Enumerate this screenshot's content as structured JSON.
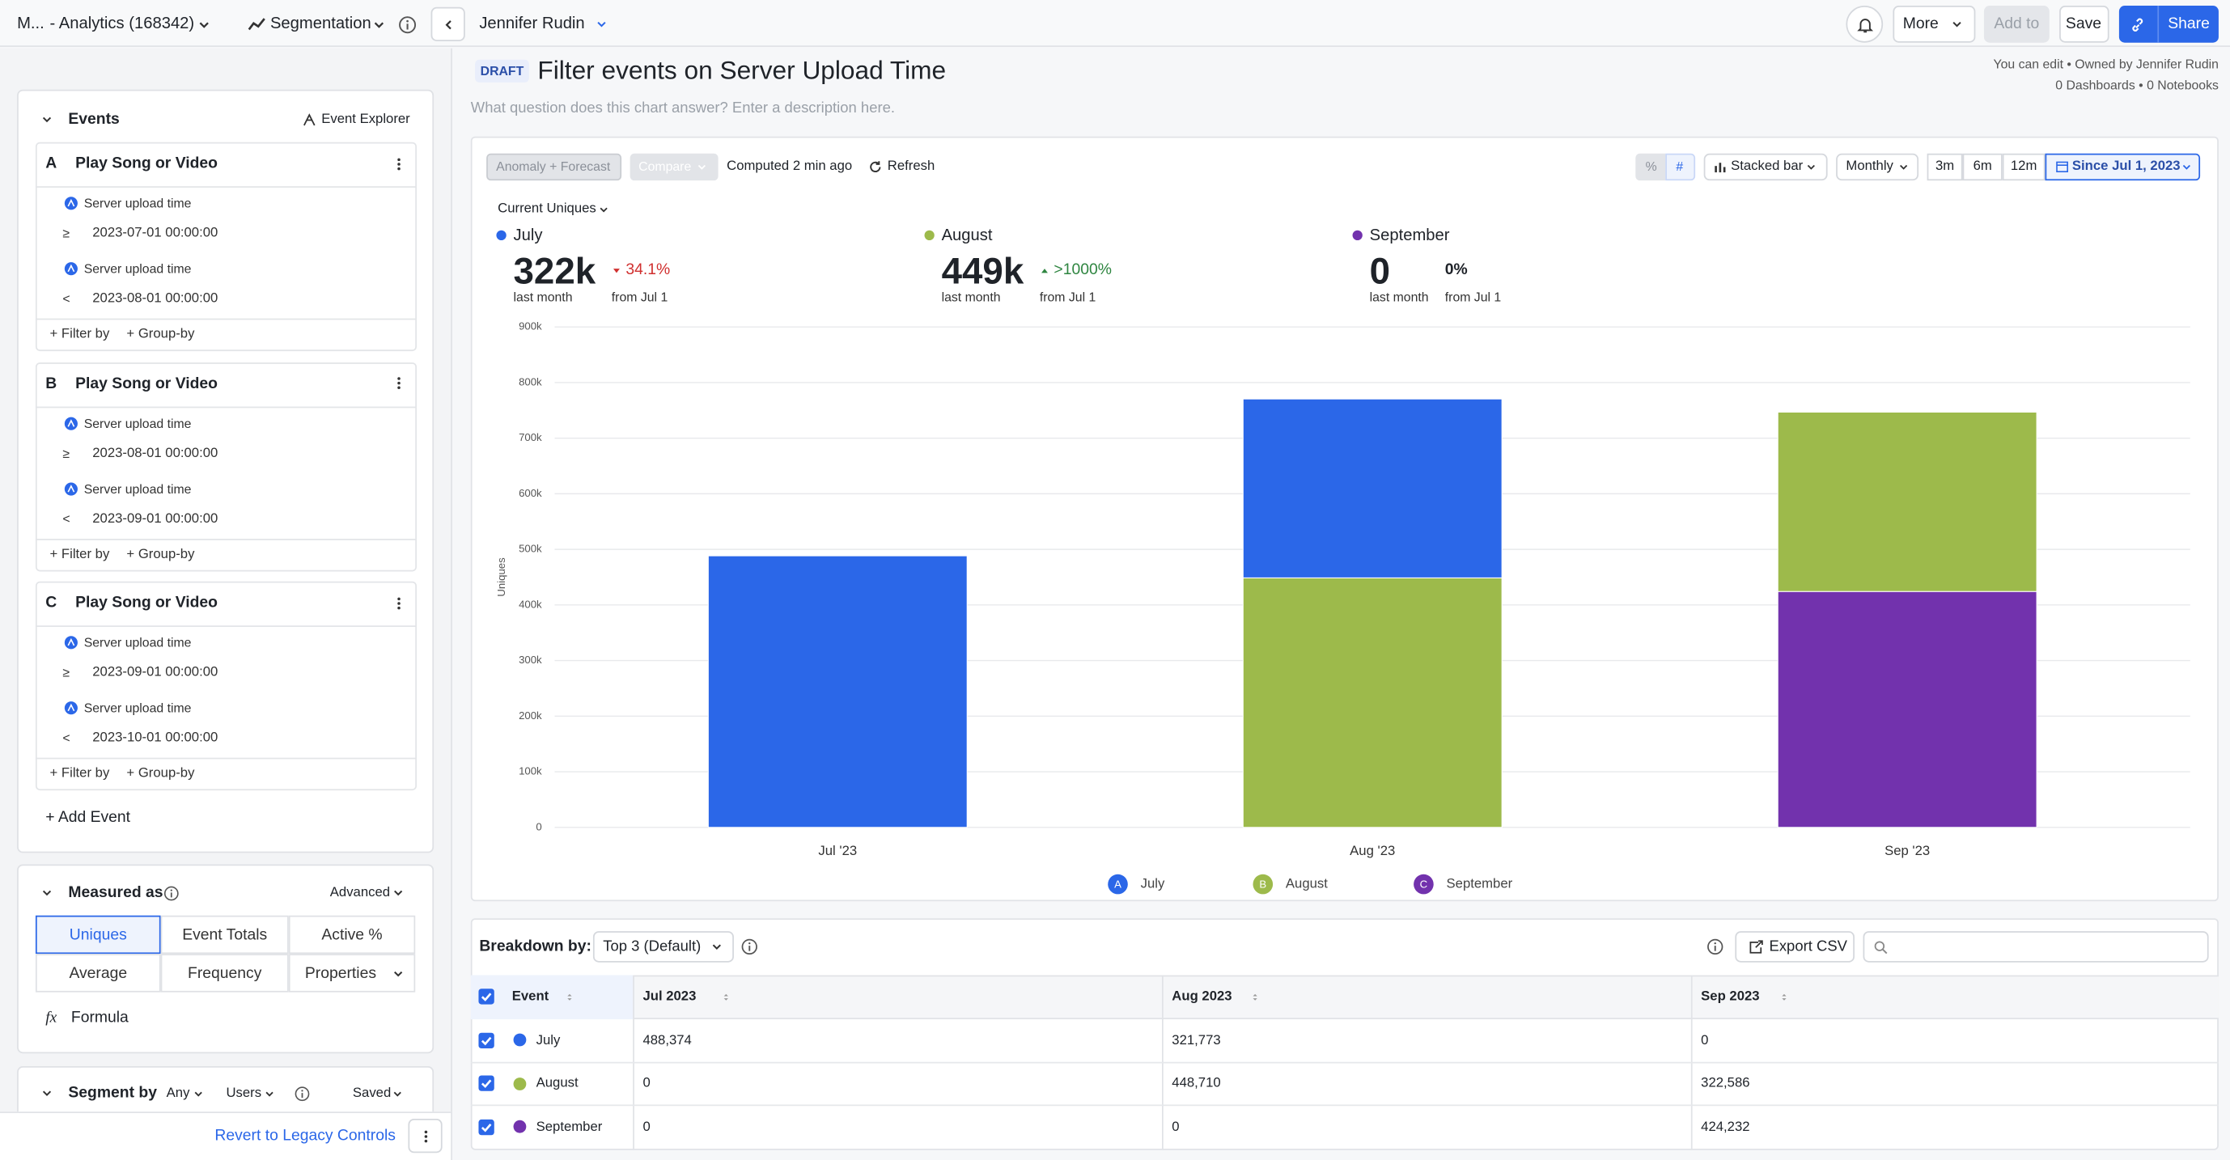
{
  "topbar": {
    "project": "M...",
    "analytics": "- Analytics (168342)",
    "chart_kind": "Segmentation",
    "owner": "Jennifer Rudin",
    "more": "More",
    "add_to": "Add to",
    "save": "Save",
    "share": "Share"
  },
  "header": {
    "badge": "DRAFT",
    "title": "Filter events on Server Upload Time",
    "description": "What question does this chart answer? Enter a description here.",
    "permissions": "You can edit • Owned by Jennifer Rudin",
    "usage": "0 Dashboards • 0 Notebooks"
  },
  "sidebar": {
    "events_title": "Events",
    "event_explorer": "Event Explorer",
    "events": [
      {
        "letter": "A",
        "name": "Play Song or Video",
        "filters": [
          {
            "property": "Server upload time",
            "operator": "≥",
            "value": "2023-07-01 00:00:00"
          },
          {
            "property": "Server upload time",
            "operator": "<",
            "value": "2023-08-01 00:00:00"
          }
        ],
        "actions": [
          "+ Filter by",
          "+ Group-by"
        ]
      },
      {
        "letter": "B",
        "name": "Play Song or Video",
        "filters": [
          {
            "property": "Server upload time",
            "operator": "≥",
            "value": "2023-08-01 00:00:00"
          },
          {
            "property": "Server upload time",
            "operator": "<",
            "value": "2023-09-01 00:00:00"
          }
        ],
        "actions": [
          "+ Filter by",
          "+ Group-by"
        ]
      },
      {
        "letter": "C",
        "name": "Play Song or Video",
        "filters": [
          {
            "property": "Server upload time",
            "operator": "≥",
            "value": "2023-09-01 00:00:00"
          },
          {
            "property": "Server upload time",
            "operator": "<",
            "value": "2023-10-01 00:00:00"
          }
        ],
        "actions": [
          "+ Filter by",
          "+ Group-by"
        ]
      }
    ],
    "add_event": "+ Add Event",
    "measured_as": {
      "title": "Measured as",
      "mode": "Advanced",
      "options": [
        "Uniques",
        "Event Totals",
        "Active %",
        "Average",
        "Frequency",
        "Properties"
      ],
      "selected": 0,
      "formula_icon": "fx",
      "formula": "Formula"
    },
    "segment_by": {
      "title": "Segment by",
      "scope": "Any",
      "entity": "Users",
      "saved": "Saved"
    },
    "revert": "Revert to Legacy Controls"
  },
  "toolbar": {
    "anomaly": "Anomaly + Forecast",
    "compare": "Compare",
    "computed": "Computed 2 min ago",
    "refresh": "Refresh",
    "percent": "%",
    "count": "#",
    "chart_style": "Stacked bar",
    "interval": "Monthly",
    "ranges": [
      "3m",
      "6m",
      "12m"
    ],
    "since": "Since Jul 1, 2023",
    "metric": "Current Uniques"
  },
  "summary": [
    {
      "name": "July",
      "value": "322k",
      "change": "34.1%",
      "direction": "down",
      "period": "last month",
      "from": "from Jul 1"
    },
    {
      "name": "August",
      "value": "449k",
      "change": ">1000%",
      "direction": "up",
      "period": "last month",
      "from": "from Jul 1"
    },
    {
      "name": "September",
      "value": "0",
      "change": "0%",
      "period": "last month",
      "from": "from Jul 1"
    }
  ],
  "chart_data": {
    "type": "bar",
    "stacked": true,
    "ylabel": "Uniques",
    "categories": [
      "Jul '23",
      "Aug '23",
      "Sep '23"
    ],
    "series": [
      {
        "name": "July",
        "letter": "A",
        "color": "#2b67e8",
        "values": [
          488374,
          321773,
          0
        ]
      },
      {
        "name": "August",
        "letter": "B",
        "color": "#9dba4b",
        "values": [
          0,
          448710,
          322586
        ]
      },
      {
        "name": "September",
        "letter": "C",
        "color": "#7232ad",
        "values": [
          0,
          0,
          424232
        ]
      }
    ],
    "ylim": [
      0,
      900000
    ],
    "yticks": [
      0,
      {
        "value": 100000,
        "label": "100k"
      },
      {
        "value": 200000,
        "label": "200k"
      },
      {
        "value": 300000,
        "label": "300k"
      },
      {
        "value": 400000,
        "label": "400k"
      },
      {
        "value": 500000,
        "label": "500k"
      },
      {
        "value": 600000,
        "label": "600k"
      },
      {
        "value": 700000,
        "label": "700k"
      },
      {
        "value": 800000,
        "label": "800k"
      },
      {
        "value": 900000,
        "label": "900k"
      }
    ],
    "grid": true,
    "legend": "bottom"
  },
  "breakdown": {
    "label": "Breakdown by:",
    "selector": "Top 3 (Default)",
    "export": "Export CSV"
  },
  "table": {
    "columns": [
      "Event",
      "Jul 2023",
      "Aug 2023",
      "Sep 2023"
    ],
    "rows": [
      [
        "July",
        "488,374",
        "321,773",
        "0"
      ],
      [
        "August",
        "0",
        "448,710",
        "322,586"
      ],
      [
        "September",
        "0",
        "0",
        "424,232"
      ]
    ]
  }
}
